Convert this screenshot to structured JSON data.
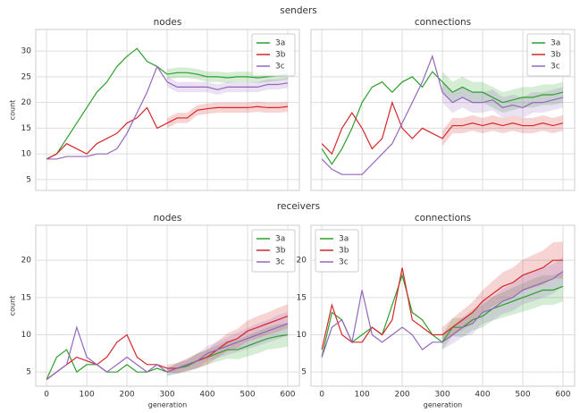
{
  "sections": [
    "senders",
    "receivers"
  ],
  "chart_data": [
    {
      "type": "line",
      "title": "nodes",
      "ylabel": "count",
      "x": [
        0,
        25,
        50,
        75,
        100,
        125,
        150,
        175,
        200,
        225,
        250,
        275,
        300,
        325,
        350,
        375,
        400,
        425,
        450,
        475,
        500,
        525,
        550,
        575,
        600
      ],
      "xlim": [
        -27,
        629
      ],
      "xticks": [
        0,
        100,
        200,
        300,
        400,
        500,
        600
      ],
      "xticklabels": false,
      "ylim": [
        2.9,
        34.2
      ],
      "yticks": [
        5,
        10,
        15,
        20,
        25,
        30
      ],
      "yticklabels": true,
      "grid": true,
      "legend": "upper right",
      "series": [
        {
          "name": "3a",
          "color": "#2ca02c",
          "values": [
            9,
            10,
            13,
            16,
            19,
            22,
            24,
            27,
            29,
            30.5,
            28,
            27,
            25.5,
            25.8,
            25.8,
            25.5,
            25,
            25,
            24.8,
            25,
            25,
            24.8,
            25,
            25.2,
            25.5
          ],
          "ci": [
            null,
            null,
            null,
            null,
            null,
            null,
            null,
            null,
            null,
            null,
            null,
            null,
            1,
            1,
            1,
            1,
            1,
            1,
            1,
            1,
            1,
            1,
            1,
            1,
            1
          ]
        },
        {
          "name": "3b",
          "color": "#d62728",
          "values": [
            9,
            10,
            12,
            11,
            10,
            12,
            13,
            14,
            16,
            17,
            19,
            15,
            16,
            17,
            17,
            18.5,
            18.8,
            19,
            19,
            19,
            19,
            19.2,
            19,
            19,
            19.2
          ],
          "ci": [
            null,
            null,
            null,
            null,
            null,
            null,
            null,
            null,
            null,
            null,
            null,
            null,
            1,
            1,
            1,
            1,
            1,
            1,
            1,
            1,
            1,
            1,
            1,
            1,
            1
          ]
        },
        {
          "name": "3c",
          "color": "#9467bd",
          "values": [
            9,
            9,
            9.5,
            9.5,
            9.5,
            10,
            10,
            11,
            14,
            18,
            22,
            27,
            24,
            23,
            23,
            23,
            23,
            22.5,
            23,
            23,
            23,
            23,
            23.5,
            23.5,
            23.8
          ],
          "ci": [
            null,
            null,
            null,
            null,
            null,
            null,
            null,
            null,
            null,
            null,
            null,
            null,
            1,
            1,
            1,
            1,
            1,
            1,
            1,
            1,
            1,
            1,
            1,
            1,
            1
          ]
        }
      ]
    },
    {
      "type": "line",
      "title": "connections",
      "x": [
        0,
        25,
        50,
        75,
        100,
        125,
        150,
        175,
        200,
        225,
        250,
        275,
        300,
        325,
        350,
        375,
        400,
        425,
        450,
        475,
        500,
        525,
        550,
        575,
        600
      ],
      "xlim": [
        -27,
        629
      ],
      "xticks": [
        0,
        100,
        200,
        300,
        400,
        500,
        600
      ],
      "xticklabels": false,
      "ylim": [
        2.9,
        34.2
      ],
      "yticks": [
        5,
        10,
        15,
        20,
        25,
        30
      ],
      "yticklabels": false,
      "grid": true,
      "legend": "upper right",
      "series": [
        {
          "name": "3a",
          "color": "#2ca02c",
          "values": [
            11,
            8,
            11,
            15,
            20,
            23,
            24,
            22,
            24,
            25,
            23,
            26,
            24,
            22,
            23,
            22,
            22,
            21,
            20,
            20.5,
            21,
            21,
            21.5,
            21.5,
            22
          ],
          "ci": [
            null,
            null,
            null,
            null,
            null,
            null,
            null,
            null,
            null,
            null,
            null,
            null,
            2,
            2,
            2,
            2,
            2,
            2,
            2,
            2,
            2,
            2,
            2,
            2,
            2
          ]
        },
        {
          "name": "3b",
          "color": "#d62728",
          "values": [
            12,
            10,
            15,
            18,
            15,
            11,
            13,
            20,
            15,
            13,
            15,
            14,
            13,
            15.5,
            15.5,
            16,
            15.5,
            16,
            15.5,
            16,
            15.5,
            15.5,
            16,
            15.5,
            16
          ],
          "ci": [
            null,
            null,
            null,
            null,
            null,
            null,
            null,
            null,
            null,
            null,
            null,
            null,
            1.5,
            1.5,
            1.5,
            1.5,
            1.5,
            1.5,
            1.5,
            1.5,
            1.5,
            1.5,
            1.5,
            1.5,
            1.5
          ]
        },
        {
          "name": "3c",
          "color": "#9467bd",
          "values": [
            9,
            7,
            6,
            6,
            6,
            8,
            10,
            12,
            16,
            20,
            24,
            29,
            22,
            20,
            21,
            20,
            20,
            20.5,
            19,
            19.5,
            19,
            20,
            20,
            20.5,
            21
          ],
          "ci": [
            null,
            null,
            null,
            null,
            null,
            null,
            null,
            null,
            null,
            null,
            null,
            null,
            2,
            2,
            2,
            2,
            2,
            2,
            2,
            2,
            2,
            2,
            2,
            2,
            2
          ]
        }
      ]
    },
    {
      "type": "line",
      "title": "nodes",
      "ylabel": "count",
      "xlabel": "generation",
      "x": [
        0,
        25,
        50,
        75,
        100,
        125,
        150,
        175,
        200,
        225,
        250,
        275,
        300,
        325,
        350,
        375,
        400,
        425,
        450,
        475,
        500,
        525,
        550,
        575,
        600
      ],
      "xlim": [
        -27,
        629
      ],
      "xticks": [
        0,
        100,
        200,
        300,
        400,
        500,
        600
      ],
      "xticklabels": true,
      "ylim": [
        3.1,
        24.7
      ],
      "yticks": [
        5,
        10,
        15,
        20
      ],
      "yticklabels": true,
      "grid": true,
      "legend": "upper right",
      "series": [
        {
          "name": "3a",
          "color": "#2ca02c",
          "values": [
            4,
            7,
            8,
            5,
            6,
            6,
            5,
            5,
            6,
            5,
            5,
            5.5,
            5,
            5.5,
            5.8,
            6.5,
            7,
            7.5,
            8,
            8,
            8.5,
            9,
            9.5,
            9.8,
            10
          ],
          "ci": [
            null,
            null,
            null,
            null,
            null,
            null,
            null,
            null,
            null,
            null,
            null,
            null,
            0.5,
            0.7,
            0.8,
            1,
            1,
            1.1,
            1.2,
            1.3,
            1.4,
            1.5,
            1.5,
            1.6,
            1.6
          ]
        },
        {
          "name": "3b",
          "color": "#d62728",
          "values": [
            4,
            5,
            6,
            7,
            6.5,
            6,
            7,
            9,
            10,
            7,
            6,
            6,
            5.5,
            5.5,
            6,
            6.5,
            7,
            8,
            9,
            9.5,
            10.5,
            11,
            11.5,
            12,
            12.5
          ],
          "ci": [
            null,
            null,
            null,
            null,
            null,
            null,
            null,
            null,
            null,
            null,
            null,
            null,
            0.5,
            0.7,
            0.8,
            1,
            1,
            1.1,
            1.2,
            1.3,
            1.4,
            1.5,
            1.5,
            1.6,
            1.6
          ]
        },
        {
          "name": "3c",
          "color": "#9467bd",
          "values": [
            4,
            5,
            6,
            11,
            7,
            6,
            5,
            6,
            7,
            6,
            5,
            6,
            5,
            5.5,
            6,
            6.5,
            7.5,
            8,
            8.5,
            9,
            9.5,
            10,
            10.5,
            11,
            11.5
          ],
          "ci": [
            null,
            null,
            null,
            null,
            null,
            null,
            null,
            null,
            null,
            null,
            null,
            null,
            0.5,
            0.7,
            0.8,
            1,
            1,
            1.1,
            1.2,
            1.3,
            1.4,
            1.5,
            1.5,
            1.6,
            1.6
          ]
        }
      ]
    },
    {
      "type": "line",
      "title": "connections",
      "xlabel": "generation",
      "x": [
        0,
        25,
        50,
        75,
        100,
        125,
        150,
        175,
        200,
        225,
        250,
        275,
        300,
        325,
        350,
        375,
        400,
        425,
        450,
        475,
        500,
        525,
        550,
        575,
        600
      ],
      "xlim": [
        -27,
        629
      ],
      "xticks": [
        0,
        100,
        200,
        300,
        400,
        500,
        600
      ],
      "xticklabels": true,
      "ylim": [
        3.1,
        24.7
      ],
      "yticks": [
        5,
        10,
        15,
        20
      ],
      "yticklabels": true,
      "grid": true,
      "legend": "upper left",
      "series": [
        {
          "name": "3a",
          "color": "#2ca02c",
          "values": [
            7,
            13,
            12,
            9,
            10,
            11,
            10,
            14,
            18,
            13,
            12,
            10,
            9,
            11,
            11,
            12,
            12.5,
            13.5,
            14,
            14.5,
            15,
            15.5,
            16,
            16,
            16.5
          ],
          "ci": [
            null,
            null,
            null,
            null,
            null,
            null,
            null,
            null,
            null,
            null,
            null,
            null,
            1,
            1.2,
            1.3,
            1.4,
            1.5,
            1.6,
            1.7,
            1.8,
            1.9,
            2,
            2,
            2,
            2
          ]
        },
        {
          "name": "3b",
          "color": "#d62728",
          "values": [
            8,
            14,
            10,
            9,
            9,
            11,
            10,
            12,
            19,
            12,
            11,
            10,
            10,
            11,
            12,
            13,
            14.5,
            15.5,
            16.5,
            17,
            18,
            18.5,
            19,
            20,
            20
          ],
          "ci": [
            null,
            null,
            null,
            null,
            null,
            null,
            null,
            null,
            null,
            null,
            null,
            null,
            1,
            1.2,
            1.3,
            1.4,
            1.5,
            1.7,
            1.9,
            2,
            2.1,
            2.2,
            2.3,
            2.4,
            2.5
          ]
        },
        {
          "name": "3c",
          "color": "#9467bd",
          "values": [
            7,
            11,
            12,
            9,
            16,
            10,
            9,
            10,
            11,
            10,
            8,
            9,
            9,
            10,
            11,
            11.5,
            13,
            13.5,
            14.5,
            15,
            16,
            16.5,
            17,
            17.5,
            18.5
          ],
          "ci": [
            null,
            null,
            null,
            null,
            null,
            null,
            null,
            null,
            null,
            null,
            null,
            null,
            1,
            1.2,
            1.3,
            1.4,
            1.5,
            1.6,
            1.7,
            1.8,
            1.9,
            2,
            2,
            2,
            2
          ]
        }
      ]
    }
  ]
}
